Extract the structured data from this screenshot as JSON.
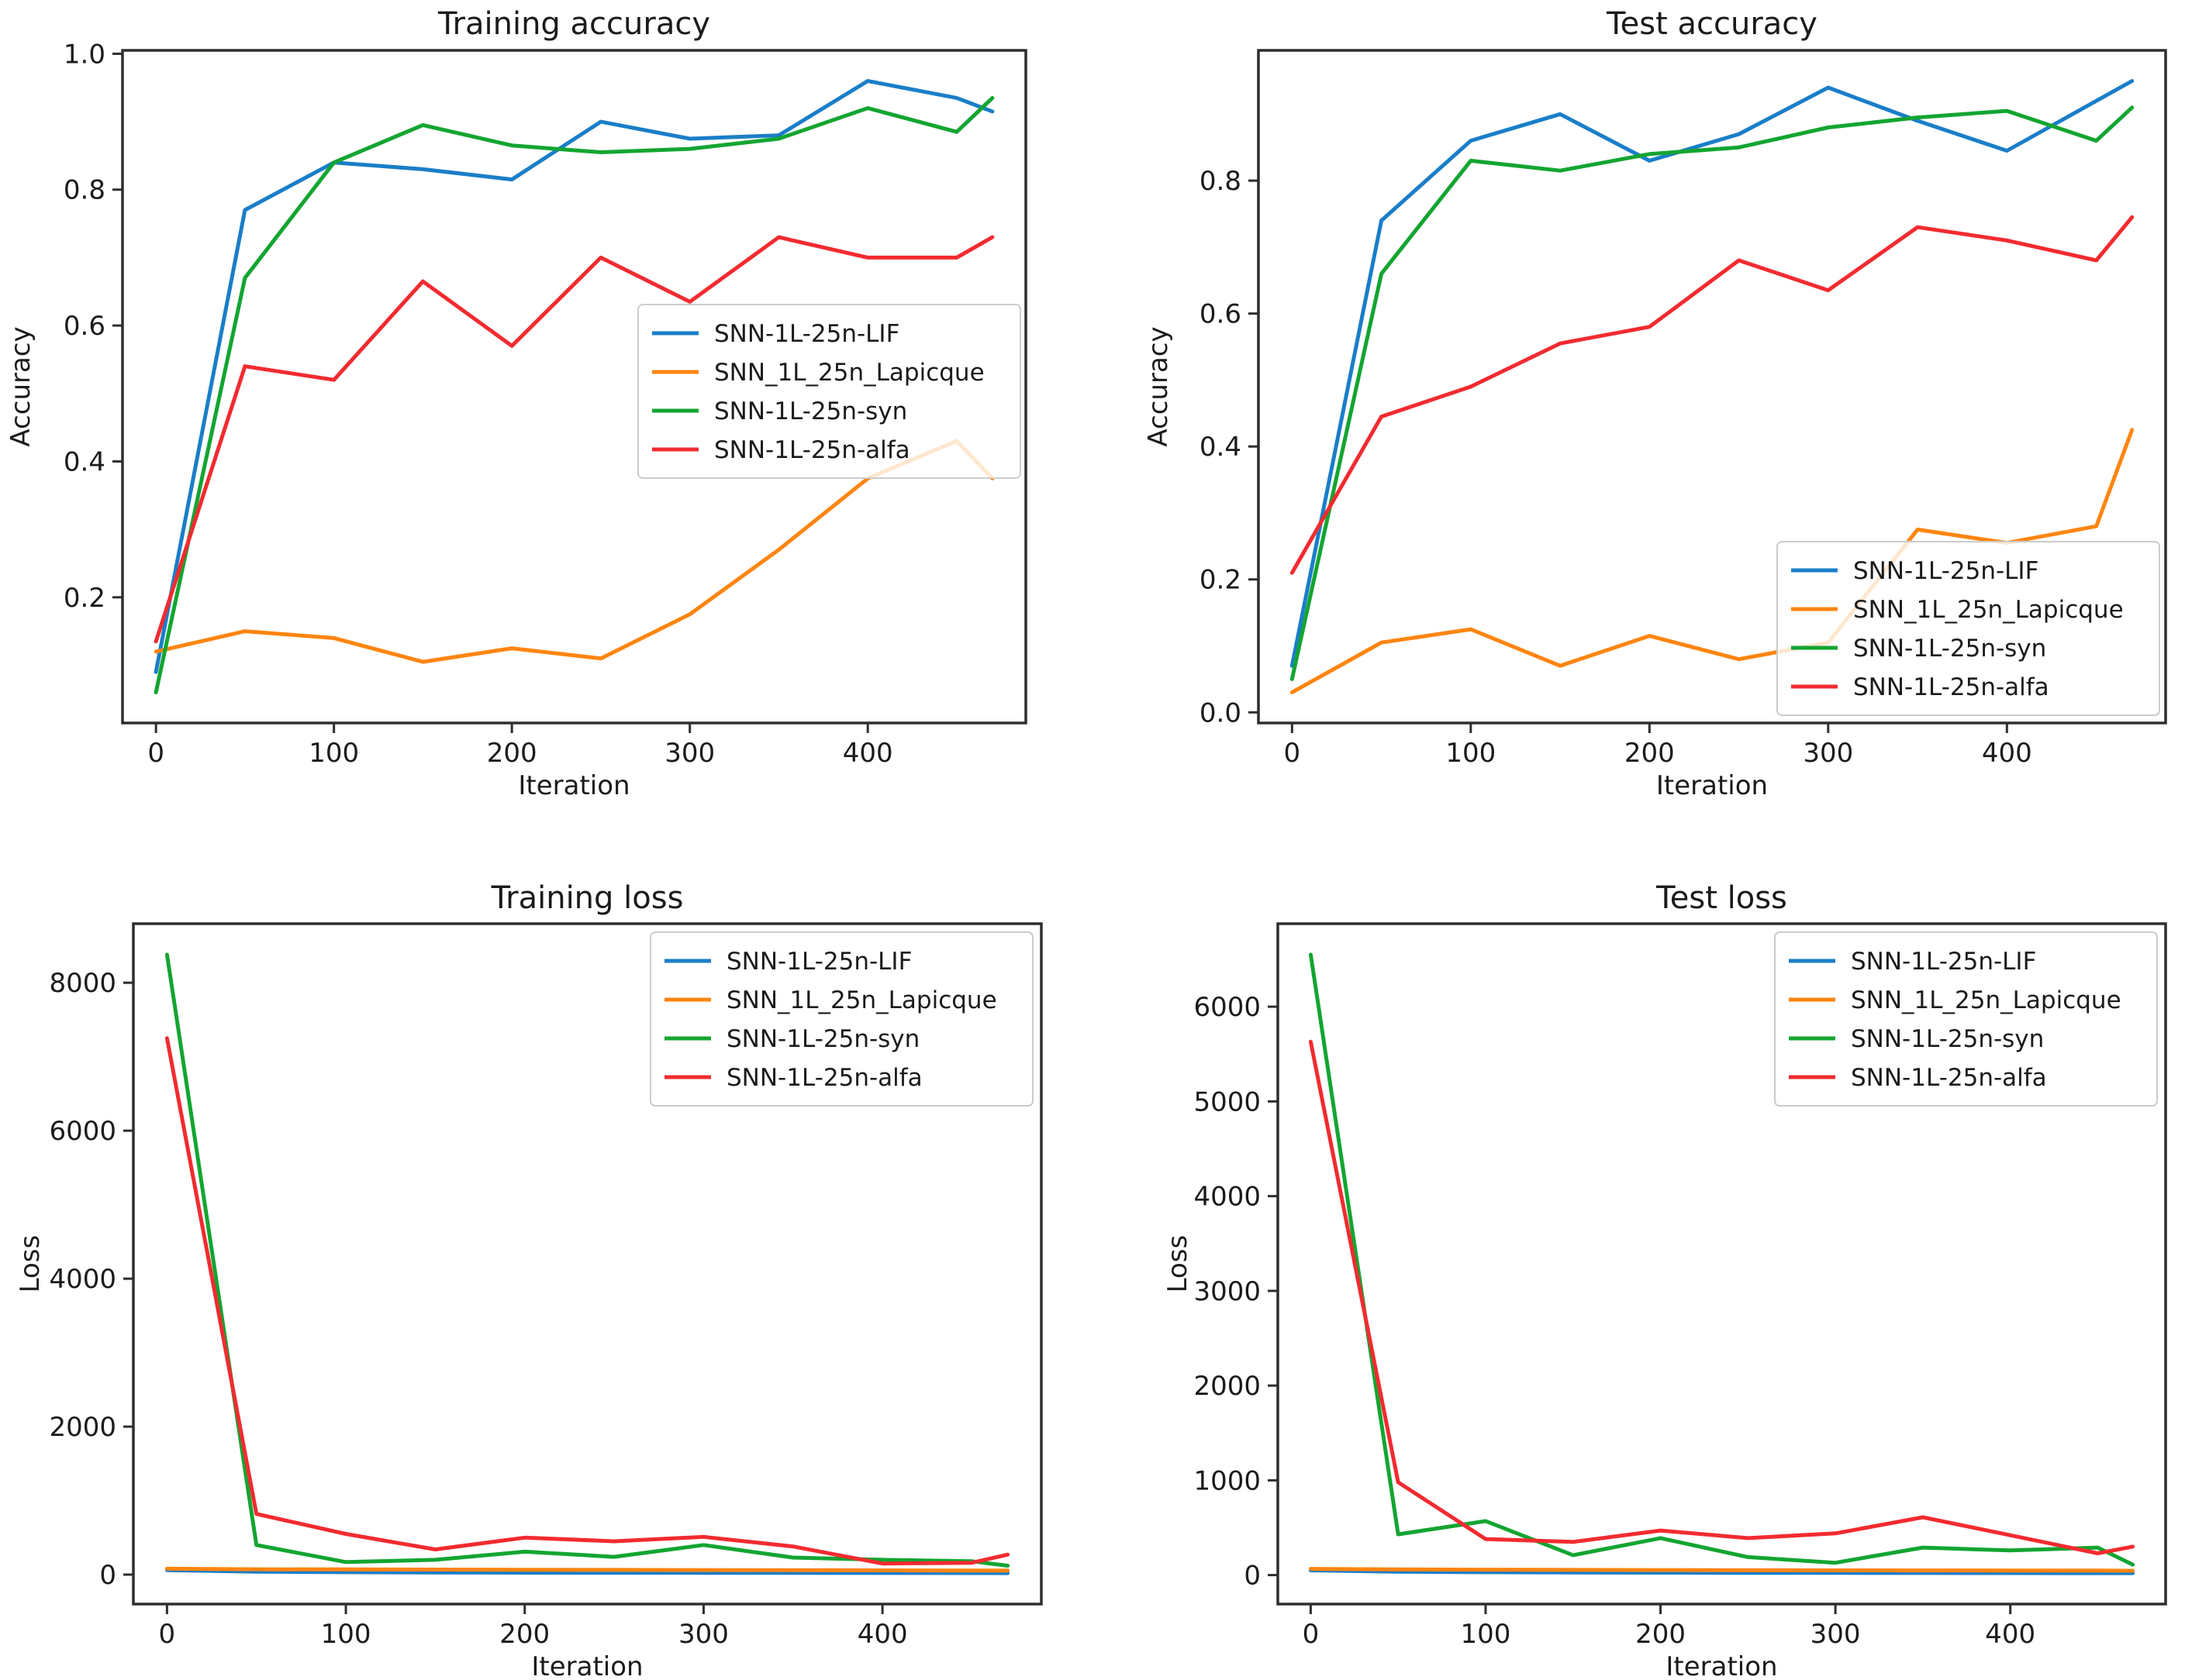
{
  "page": {
    "background": "#ffffff",
    "text_color": "#1b1b1b",
    "spine_color": "#2e2e2e",
    "legend_border_color": "#cccccc"
  },
  "chart_data": [
    {
      "id": "training-accuracy",
      "type": "line",
      "title": "Training accuracy",
      "xlabel": "Iteration",
      "ylabel": "Accuracy",
      "grid": false,
      "x": [
        0,
        50,
        100,
        150,
        200,
        250,
        300,
        350,
        400,
        450,
        470
      ],
      "xlim": [
        -18.8,
        488.8
      ],
      "ylim": [
        0.015,
        1.005
      ],
      "xticks": [
        0,
        100,
        200,
        300,
        400
      ],
      "xtick_labels": [
        "0",
        "100",
        "200",
        "300",
        "400"
      ],
      "yticks": [
        0.2,
        0.4,
        0.6,
        0.8,
        1.0
      ],
      "ytick_labels": [
        "0.2",
        "0.4",
        "0.6",
        "0.8",
        "1.0"
      ],
      "legend_loc": "center right",
      "series": [
        {
          "name": "SNN-1L-25n-LIF",
          "color": "#1a7ec8",
          "values": [
            0.09,
            0.77,
            0.84,
            0.83,
            0.815,
            0.9,
            0.875,
            0.88,
            0.96,
            0.935,
            0.915
          ]
        },
        {
          "name": "SNN_1L_25n_Lapicque",
          "color": "#ff8510",
          "values": [
            0.12,
            0.15,
            0.14,
            0.105,
            0.125,
            0.11,
            0.175,
            0.27,
            0.375,
            0.43,
            0.375
          ]
        },
        {
          "name": "SNN-1L-25n-syn",
          "color": "#13a531",
          "values": [
            0.06,
            0.67,
            0.84,
            0.895,
            0.865,
            0.855,
            0.86,
            0.875,
            0.92,
            0.885,
            0.935
          ]
        },
        {
          "name": "SNN-1L-25n-alfa",
          "color": "#f22b30",
          "values": [
            0.135,
            0.54,
            0.52,
            0.665,
            0.57,
            0.7,
            0.635,
            0.73,
            0.7,
            0.7,
            0.73
          ]
        }
      ]
    },
    {
      "id": "test-accuracy",
      "type": "line",
      "title": "Test accuracy",
      "xlabel": "Iteration",
      "ylabel": "Accuracy",
      "grid": false,
      "x": [
        0,
        50,
        100,
        150,
        200,
        250,
        300,
        350,
        400,
        450,
        470
      ],
      "xlim": [
        -18.8,
        488.8
      ],
      "ylim": [
        -0.016,
        0.996
      ],
      "xticks": [
        0,
        100,
        200,
        300,
        400
      ],
      "xtick_labels": [
        "0",
        "100",
        "200",
        "300",
        "400"
      ],
      "yticks": [
        0.0,
        0.2,
        0.4,
        0.6,
        0.8
      ],
      "ytick_labels": [
        "0.0",
        "0.2",
        "0.4",
        "0.6",
        "0.8"
      ],
      "legend_loc": "lower right",
      "series": [
        {
          "name": "SNN-1L-25n-LIF",
          "color": "#1a7ec8",
          "values": [
            0.07,
            0.74,
            0.86,
            0.9,
            0.83,
            0.87,
            0.94,
            0.89,
            0.845,
            0.92,
            0.95
          ]
        },
        {
          "name": "SNN_1L_25n_Lapicque",
          "color": "#ff8510",
          "values": [
            0.03,
            0.105,
            0.125,
            0.07,
            0.115,
            0.08,
            0.105,
            0.275,
            0.255,
            0.28,
            0.425
          ]
        },
        {
          "name": "SNN-1L-25n-syn",
          "color": "#13a531",
          "values": [
            0.05,
            0.66,
            0.83,
            0.815,
            0.84,
            0.85,
            0.88,
            0.895,
            0.905,
            0.86,
            0.91
          ]
        },
        {
          "name": "SNN-1L-25n-alfa",
          "color": "#f22b30",
          "values": [
            0.21,
            0.445,
            0.49,
            0.555,
            0.58,
            0.68,
            0.635,
            0.73,
            0.71,
            0.68,
            0.745
          ]
        }
      ]
    },
    {
      "id": "training-loss",
      "type": "line",
      "title": "Training loss",
      "xlabel": "Iteration",
      "ylabel": "Loss",
      "grid": false,
      "x": [
        0,
        50,
        100,
        150,
        200,
        250,
        300,
        350,
        400,
        450,
        470
      ],
      "xlim": [
        -18.8,
        488.8
      ],
      "ylim": [
        -398,
        8798
      ],
      "xticks": [
        0,
        100,
        200,
        300,
        400
      ],
      "xtick_labels": [
        "0",
        "100",
        "200",
        "300",
        "400"
      ],
      "yticks": [
        0,
        2000,
        4000,
        6000,
        8000
      ],
      "ytick_labels": [
        "0",
        "2000",
        "4000",
        "6000",
        "8000"
      ],
      "legend_loc": "upper right",
      "series": [
        {
          "name": "SNN-1L-25n-LIF",
          "color": "#1a7ec8",
          "values": [
            60,
            40,
            32,
            28,
            26,
            25,
            24,
            23,
            22,
            21,
            20
          ]
        },
        {
          "name": "SNN_1L_25n_Lapicque",
          "color": "#ff8510",
          "values": [
            80,
            72,
            70,
            68,
            66,
            64,
            62,
            60,
            58,
            56,
            55
          ]
        },
        {
          "name": "SNN-1L-25n-syn",
          "color": "#13a531",
          "values": [
            8380,
            400,
            170,
            200,
            310,
            240,
            400,
            230,
            200,
            180,
            120
          ]
        },
        {
          "name": "SNN-1L-25n-alfa",
          "color": "#f22b30",
          "values": [
            7250,
            820,
            550,
            340,
            500,
            450,
            510,
            380,
            150,
            160,
            270
          ]
        }
      ]
    },
    {
      "id": "test-loss",
      "type": "line",
      "title": "Test loss",
      "xlabel": "Iteration",
      "ylabel": "Loss",
      "grid": false,
      "x": [
        0,
        50,
        100,
        150,
        200,
        250,
        300,
        350,
        400,
        450,
        470
      ],
      "xlim": [
        -18.8,
        488.8
      ],
      "ylim": [
        -306,
        6876
      ],
      "xticks": [
        0,
        100,
        200,
        300,
        400
      ],
      "xtick_labels": [
        "0",
        "100",
        "200",
        "300",
        "400"
      ],
      "yticks": [
        0,
        1000,
        2000,
        3000,
        4000,
        5000,
        6000
      ],
      "ytick_labels": [
        "0",
        "1000",
        "2000",
        "3000",
        "4000",
        "5000",
        "6000"
      ],
      "legend_loc": "upper right",
      "series": [
        {
          "name": "SNN-1L-25n-LIF",
          "color": "#1a7ec8",
          "values": [
            50,
            35,
            30,
            27,
            25,
            24,
            23,
            22,
            21,
            20,
            20
          ]
        },
        {
          "name": "SNN_1L_25n_Lapicque",
          "color": "#ff8510",
          "values": [
            65,
            60,
            57,
            55,
            53,
            51,
            50,
            49,
            48,
            47,
            46
          ]
        },
        {
          "name": "SNN-1L-25n-syn",
          "color": "#13a531",
          "values": [
            6550,
            430,
            570,
            210,
            390,
            190,
            130,
            290,
            260,
            290,
            110
          ]
        },
        {
          "name": "SNN-1L-25n-alfa",
          "color": "#f22b30",
          "values": [
            5630,
            980,
            380,
            350,
            470,
            390,
            440,
            610,
            420,
            230,
            300
          ]
        }
      ]
    }
  ]
}
